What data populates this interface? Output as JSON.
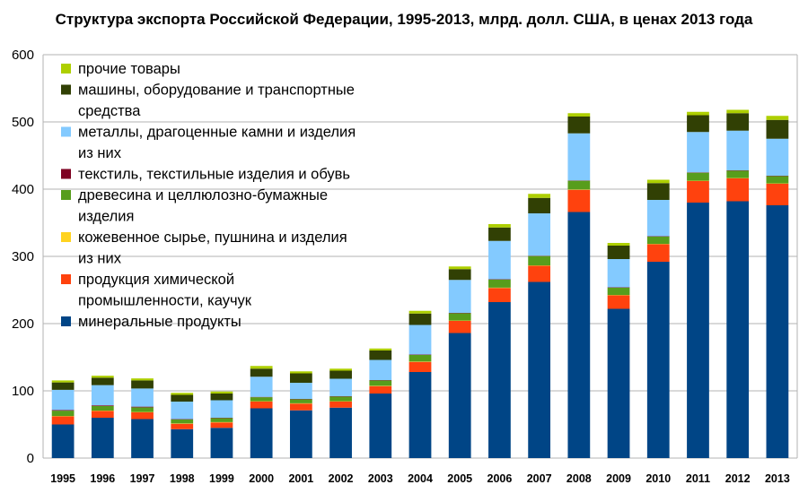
{
  "chart_data": {
    "type": "bar",
    "stacked": true,
    "title": "Структура экспорта Российской Федерации, 1995-2013, млрд. долл. США, в ценах 2013 года",
    "xlabel": "",
    "ylabel": "",
    "ylim": [
      0,
      600
    ],
    "yticks": [
      "0",
      "100",
      "200",
      "300",
      "400",
      "500",
      "600"
    ],
    "grid": true,
    "legend_position": "top-left",
    "categories": [
      "1995",
      "1996",
      "1997",
      "1998",
      "1999",
      "2000",
      "2001",
      "2002",
      "2003",
      "2004",
      "2005",
      "2006",
      "2007",
      "2008",
      "2009",
      "2010",
      "2011",
      "2012",
      "2013"
    ],
    "series": [
      {
        "key": "mineral",
        "name": "минеральные продукты",
        "color": "#004586",
        "values": [
          50,
          60,
          58,
          43,
          45,
          74,
          71,
          75,
          96,
          128,
          186,
          232,
          262,
          366,
          222,
          292,
          380,
          382,
          376
        ]
      },
      {
        "key": "chemical",
        "name": "продукция химической промышленности, каучук",
        "color": "#ff420e",
        "values": [
          12,
          10,
          10,
          8,
          8,
          10,
          10,
          9,
          11,
          15,
          18,
          21,
          24,
          33,
          20,
          26,
          32,
          34,
          32
        ]
      },
      {
        "key": "leather",
        "name": "кожевенное сырье, пушнина и изделия из них",
        "color": "#ffd320",
        "values": [
          0.5,
          0.5,
          0.5,
          0.5,
          0.5,
          0.5,
          0.5,
          0.5,
          0.5,
          0.5,
          0.5,
          0.5,
          0.5,
          0.5,
          0.5,
          0.5,
          0.5,
          0.5,
          0.5
        ]
      },
      {
        "key": "wood",
        "name": "древесина и целлюлозно-бумажные изделия",
        "color": "#579d1c",
        "values": [
          8,
          7,
          7,
          6,
          6,
          6,
          6,
          7,
          8,
          10,
          11,
          12,
          14,
          13,
          11,
          11,
          12,
          11,
          11
        ]
      },
      {
        "key": "textile",
        "name": "текстиль, текстильные изделия  и обувь",
        "color": "#7e0021",
        "values": [
          1,
          1,
          1,
          0.5,
          0.5,
          0.5,
          0.5,
          0.5,
          0.5,
          0.5,
          0.5,
          0.5,
          0.5,
          0.5,
          0.5,
          0.5,
          0.5,
          0.5,
          0.5
        ]
      },
      {
        "key": "metals",
        "name": "металлы, драгоценные камни и изделия из них",
        "color": "#83caff",
        "values": [
          30,
          30,
          27,
          26,
          26,
          30,
          24,
          26,
          30,
          44,
          49,
          57,
          63,
          70,
          42,
          54,
          60,
          59,
          55
        ]
      },
      {
        "key": "machinery",
        "name": "машины, оборудование и транспортные средства",
        "color": "#314004",
        "values": [
          11,
          11,
          12,
          10,
          10,
          12,
          14,
          12,
          14,
          17,
          16,
          20,
          23,
          25,
          20,
          25,
          25,
          26,
          28
        ]
      },
      {
        "key": "other",
        "name": "прочие товары",
        "color": "#aecf00",
        "values": [
          3,
          3,
          3,
          3,
          3,
          4,
          3,
          3,
          3,
          4,
          4,
          5,
          6,
          5,
          4,
          5,
          5,
          5,
          6
        ]
      }
    ],
    "legend_order": [
      "other",
      "machinery",
      "metals",
      "textile",
      "wood",
      "leather",
      "chemical",
      "mineral"
    ],
    "legend_lines": {
      "other": [
        "прочие товары"
      ],
      "machinery": [
        "машины, оборудование и транспортные",
        "средства"
      ],
      "metals": [
        "металлы, драгоценные камни и изделия",
        "из них"
      ],
      "textile": [
        "текстиль, текстильные изделия  и обувь"
      ],
      "wood": [
        "древесина и целлюлозно-бумажные",
        "изделия"
      ],
      "leather": [
        "кожевенное сырье, пушнина и изделия",
        "из них"
      ],
      "chemical": [
        "продукция химической",
        "промышленности, каучук"
      ],
      "mineral": [
        "минеральные продукты"
      ]
    }
  }
}
